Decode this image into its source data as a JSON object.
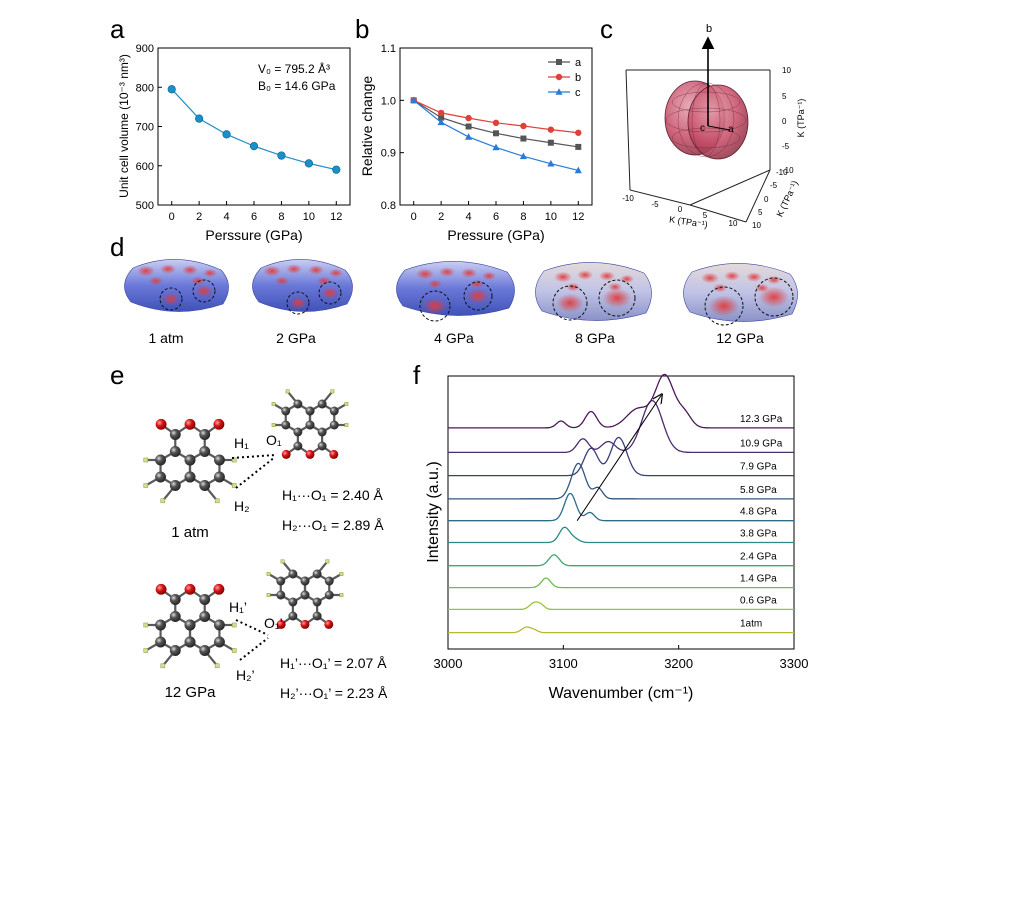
{
  "panels": {
    "a": {
      "letter": "a",
      "annot1": "V₀ = 795.2 Å³",
      "annot2": "B₀ = 14.6 GPa"
    },
    "b": {
      "letter": "b"
    },
    "c": {
      "letter": "c",
      "axis_b": "b",
      "axis_c": "c",
      "axis_a": "a",
      "z_label": "K (TPa⁻¹)",
      "x_label": "K (TPa⁻¹)",
      "y_label": "K (TPa⁻¹)",
      "z_ticks": [
        "10",
        "5",
        "0",
        "-5",
        "-10"
      ],
      "x_ticks": [
        "-10",
        "-5",
        "0",
        "5",
        "10"
      ],
      "y_ticks": [
        "-10",
        "-5",
        "0",
        "5",
        "10"
      ],
      "surface_color": "#c8506a"
    },
    "d": {
      "letter": "d",
      "labels": [
        "1 atm",
        "2 GPa",
        "4 GPa",
        "8 GPa",
        "12 GPa"
      ]
    },
    "e": {
      "letter": "e",
      "top": {
        "h1": "H₁",
        "h2": "H₂",
        "o1": "O₁",
        "condition": "1 atm",
        "dist1": "H₁···O₁ = 2.40 Å",
        "dist2": "H₂···O₁ = 2.89 Å"
      },
      "bottom": {
        "h1": "H₁’",
        "h2": "H₂’",
        "o1": "O₁’",
        "condition": "12 GPa",
        "dist1": "H₁’···O₁’ = 2.07 Å",
        "dist2": "H₂’···O₁’ = 2.23 Å"
      }
    },
    "f": {
      "letter": "f"
    }
  },
  "chart_data": [
    {
      "panel": "a",
      "type": "line",
      "xlabel": "Perssure (GPa)",
      "ylabel": "Unit cell volume (10⁻³ nm³)",
      "xlim": [
        -1,
        13
      ],
      "ylim": [
        500,
        900
      ],
      "xticks": [
        0,
        2,
        4,
        6,
        8,
        10,
        12
      ],
      "yticks": [
        500,
        600,
        700,
        800,
        900
      ],
      "color": "#1d8fc8",
      "x": [
        0,
        2,
        4,
        6,
        8,
        10,
        12
      ],
      "y": [
        795,
        720,
        680,
        650,
        626,
        606,
        590
      ]
    },
    {
      "panel": "b",
      "type": "line",
      "xlabel": "Pressure (GPa)",
      "ylabel": "Relative change",
      "xlim": [
        -1,
        13
      ],
      "ylim": [
        0.8,
        1.1
      ],
      "xticks": [
        0,
        2,
        4,
        6,
        8,
        10,
        12
      ],
      "yticks": [
        0.8,
        0.9,
        1.0,
        1.1
      ],
      "ytick_labels": [
        "0.8",
        "0.9",
        "1.0",
        "1.1"
      ],
      "legend_position": "top-right",
      "x": [
        0,
        2,
        4,
        6,
        8,
        10,
        12
      ],
      "series": [
        {
          "name": "a",
          "color": "#555555",
          "marker": "square",
          "values": [
            1.0,
            0.967,
            0.95,
            0.937,
            0.927,
            0.919,
            0.911
          ]
        },
        {
          "name": "b",
          "color": "#e0403a",
          "marker": "circle",
          "values": [
            1.0,
            0.976,
            0.966,
            0.957,
            0.951,
            0.944,
            0.938
          ]
        },
        {
          "name": "c",
          "color": "#2a7bd6",
          "marker": "triangle",
          "values": [
            1.0,
            0.958,
            0.93,
            0.91,
            0.893,
            0.879,
            0.866
          ]
        }
      ]
    },
    {
      "panel": "f",
      "type": "line",
      "xlabel": "Wavenumber (cm⁻¹)",
      "ylabel": "Intensity (a.u.)",
      "xlim": [
        3000,
        3300
      ],
      "xticks": [
        3000,
        3100,
        3200,
        3300
      ],
      "arrow": {
        "from": [
          3112,
          0.47
        ],
        "to": [
          3185,
          0.93
        ]
      },
      "series": [
        {
          "name": "1atm",
          "color": "#b8b830",
          "baseline": 0.06,
          "peaks": [
            [
              3068,
              0.02,
              4
            ],
            [
              3075,
              0.008,
              3
            ]
          ]
        },
        {
          "name": "0.6 GPa",
          "color": "#9cc23c",
          "baseline": 0.145,
          "peaks": [
            [
              3075,
              0.025,
              4
            ],
            [
              3081,
              0.012,
              3
            ]
          ]
        },
        {
          "name": "1.4 GPa",
          "color": "#6cbc52",
          "baseline": 0.225,
          "peaks": [
            [
              3085,
              0.035,
              4
            ]
          ]
        },
        {
          "name": "2.4 GPa",
          "color": "#3fa870",
          "baseline": 0.305,
          "peaks": [
            [
              3092,
              0.04,
              4.5
            ]
          ]
        },
        {
          "name": "3.8 GPa",
          "color": "#2d8a82",
          "baseline": 0.39,
          "peaks": [
            [
              3101,
              0.055,
              4.5
            ],
            [
              3110,
              0.012,
              4
            ]
          ]
        },
        {
          "name": "4.8 GPa",
          "color": "#2d6d88",
          "baseline": 0.47,
          "peaks": [
            [
              3106,
              0.1,
              5
            ],
            [
              3123,
              0.03,
              4
            ]
          ]
        },
        {
          "name": "5.8 GPa",
          "color": "#345680",
          "baseline": 0.55,
          "peaks": [
            [
              3113,
              0.13,
              6
            ],
            [
              3130,
              0.04,
              4
            ]
          ]
        },
        {
          "name": "7.9 GPa",
          "color": "#3b3f78",
          "baseline": 0.635,
          "peaks": [
            [
              3124,
              0.1,
              6
            ],
            [
              3148,
              0.14,
              7
            ]
          ]
        },
        {
          "name": "10.9 GPa",
          "color": "#4a2e6e",
          "baseline": 0.72,
          "peaks": [
            [
              3117,
              0.05,
              5
            ],
            [
              3139,
              0.04,
              6
            ],
            [
              3177,
              0.19,
              9
            ]
          ]
        },
        {
          "name": "12.3 GPa",
          "color": "#4a1a56",
          "baseline": 0.81,
          "peaks": [
            [
              3098,
              0.025,
              4
            ],
            [
              3124,
              0.06,
              5
            ],
            [
              3165,
              0.07,
              10
            ],
            [
              3188,
              0.19,
              8
            ],
            [
              3205,
              0.05,
              6
            ]
          ]
        }
      ]
    }
  ]
}
